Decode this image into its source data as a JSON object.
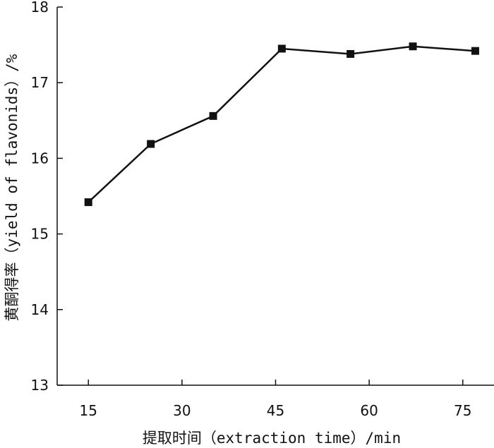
{
  "chart_data": {
    "type": "line",
    "title": "",
    "xlabel": "提取时间（extraction time）/min",
    "ylabel": "黄酮得率（yield of flavonids）/%",
    "xlim": [
      10,
      80
    ],
    "ylim": [
      13,
      18
    ],
    "xticks": [
      15,
      30,
      45,
      60,
      75
    ],
    "yticks": [
      13,
      14,
      15,
      16,
      17,
      18
    ],
    "grid": false,
    "legend": "none",
    "series": [
      {
        "marker": "square",
        "color": "#111111",
        "x": [
          15,
          25,
          35,
          46,
          57,
          67,
          77
        ],
        "y": [
          15.42,
          16.19,
          16.56,
          17.45,
          17.38,
          17.48,
          17.42
        ]
      }
    ]
  }
}
